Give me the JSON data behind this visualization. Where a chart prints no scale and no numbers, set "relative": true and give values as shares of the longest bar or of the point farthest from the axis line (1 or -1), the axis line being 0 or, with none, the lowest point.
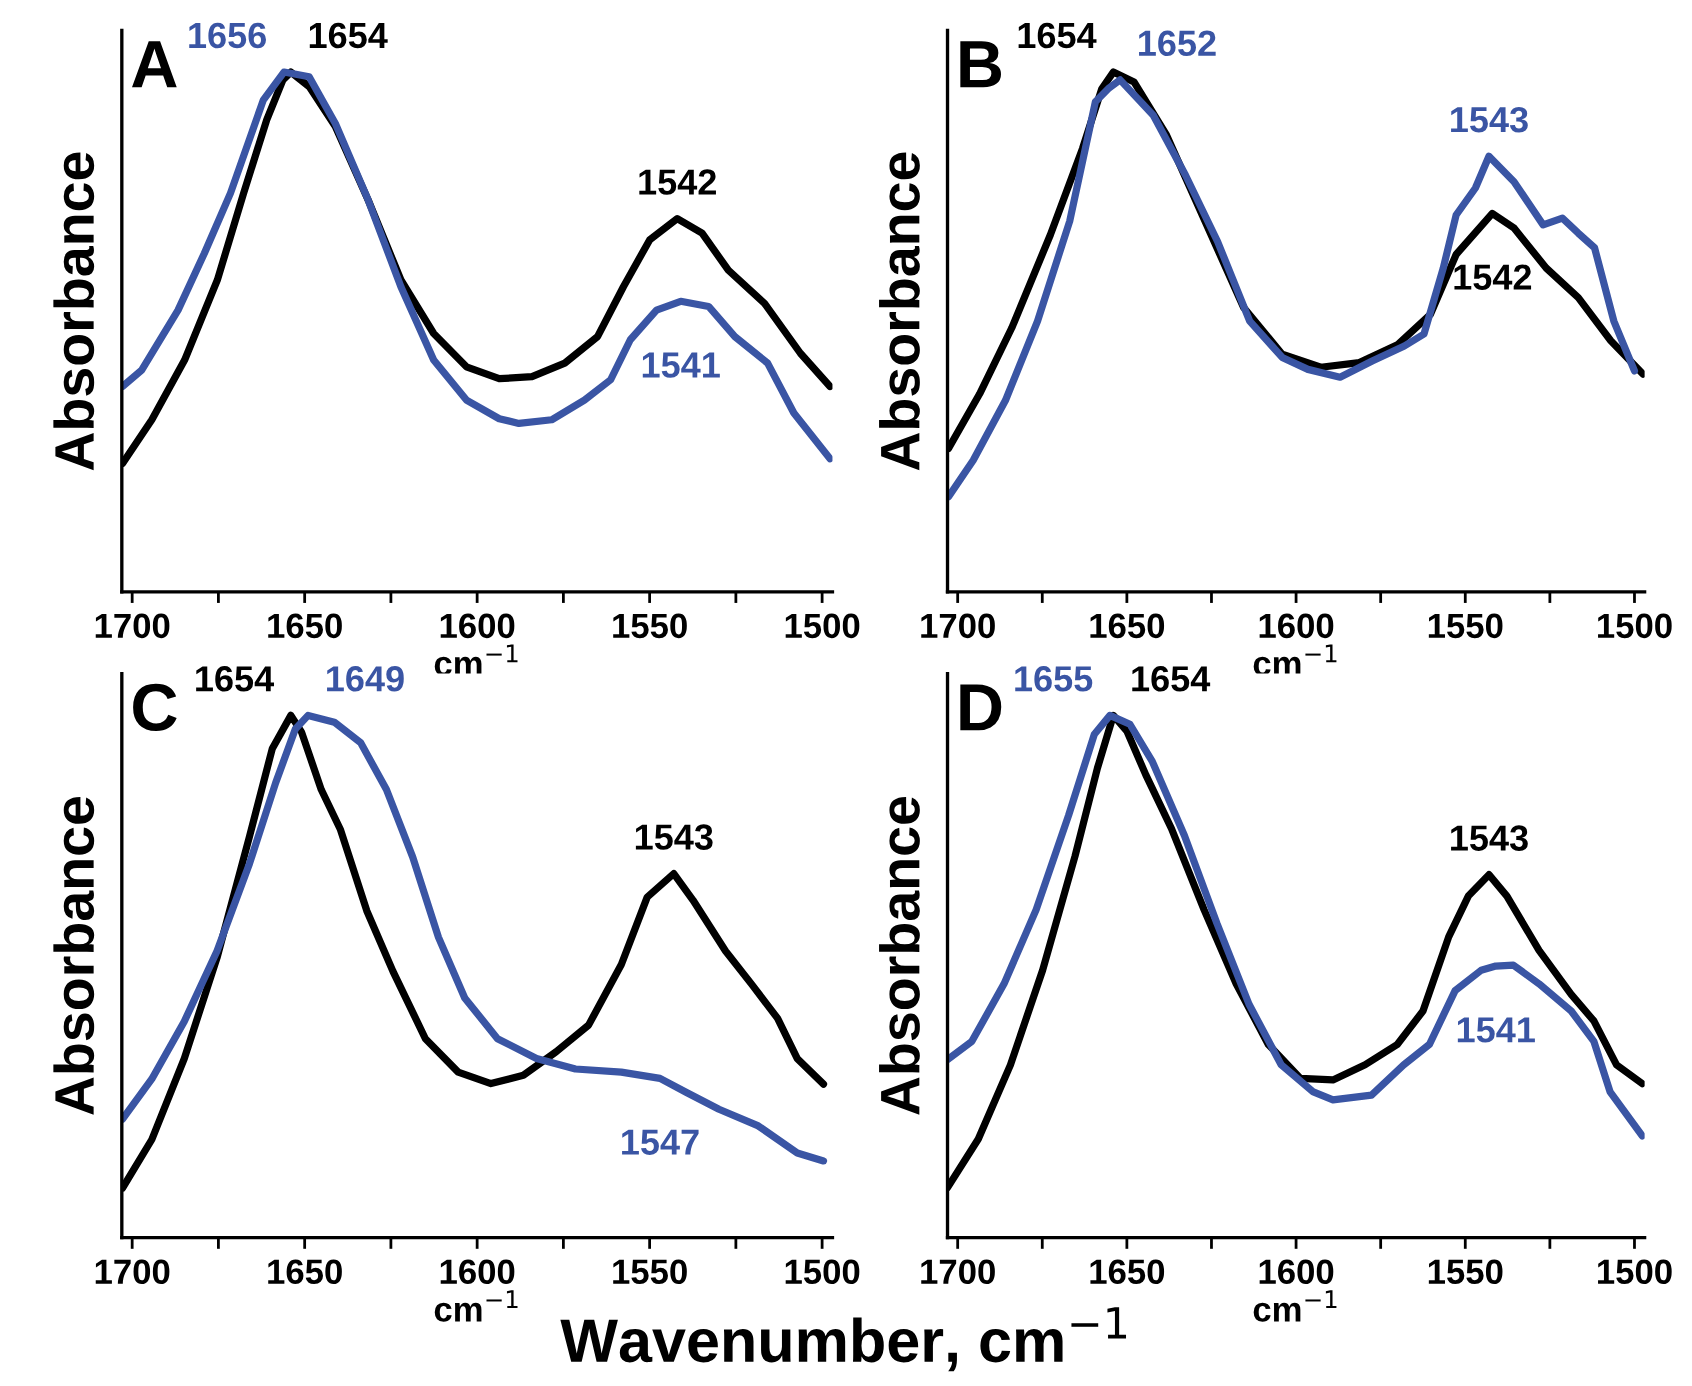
{
  "chart_data": [
    {
      "type": "line",
      "title": "A",
      "xlabel": "cm$^{−1}$",
      "ylabel": "Absorbance",
      "relative": true,
      "grid": false,
      "xlim": [
        1703,
        1497
      ],
      "xticks": [
        1700,
        {
          "value": 1675,
          "label": null
        },
        1650,
        {
          "value": 1625,
          "label": null
        },
        1600,
        {
          "value": 1575,
          "label": null
        },
        1550,
        {
          "value": 1525,
          "label": null
        },
        1500
      ],
      "series": [
        {
          "color": "#000000",
          "x": [
            1702.8,
            1694.3,
            1684.8,
            1675.3,
            1667.7,
            1661,
            1656.3,
            1654,
            1648.7,
            1641.1,
            1631.6,
            1622.1,
            1612.6,
            1603.1,
            1593.6,
            1584.1,
            1574.6,
            1565.1,
            1557.6,
            1550,
            1542,
            1534.8,
            1527.2,
            1516.7,
            1506.3,
            1497.7
          ],
          "values": [
            0.247,
            0.331,
            0.446,
            0.6,
            0.767,
            0.908,
            0.985,
            1.0,
            0.972,
            0.895,
            0.754,
            0.6,
            0.497,
            0.433,
            0.41,
            0.414,
            0.44,
            0.491,
            0.587,
            0.677,
            0.718,
            0.69,
            0.619,
            0.555,
            0.459,
            0.395
          ]
        },
        {
          "color": "#3a55a4",
          "x": [
            1702.8,
            1697.2,
            1686.7,
            1679.1,
            1671.5,
            1662,
            1656,
            1648.7,
            1641.1,
            1631.6,
            1622.1,
            1612.6,
            1603.1,
            1593.6,
            1587.9,
            1578.4,
            1568.9,
            1561.3,
            1555.6,
            1548,
            1541,
            1532.9,
            1525.3,
            1515.8,
            1508.2,
            1497.7
          ],
          "values": [
            0.395,
            0.427,
            0.542,
            0.651,
            0.767,
            0.946,
            1.0,
            0.991,
            0.901,
            0.754,
            0.587,
            0.446,
            0.369,
            0.333,
            0.324,
            0.331,
            0.369,
            0.408,
            0.485,
            0.542,
            0.559,
            0.549,
            0.491,
            0.44,
            0.344,
            0.256
          ]
        }
      ],
      "annotations": [
        {
          "text": "1656",
          "x": 1656,
          "y": 1.0
        },
        {
          "text": "1654",
          "x": 1654,
          "y": 1.0
        },
        {
          "text": "1542",
          "x": 1542,
          "y": 0.718
        },
        {
          "text": "1541",
          "x": 1541,
          "y": 0.559
        }
      ]
    },
    {
      "type": "line",
      "title": "B",
      "xlabel": "cm$^{−1}$",
      "ylabel": "Absorbance",
      "relative": true,
      "grid": false,
      "xlim": [
        1703,
        1497
      ],
      "xticks": [
        1700,
        {
          "value": 1675,
          "label": null
        },
        1650,
        {
          "value": 1625,
          "label": null
        },
        1600,
        {
          "value": 1575,
          "label": null
        },
        1550,
        {
          "value": 1525,
          "label": null
        },
        1500
      ],
      "series": [
        {
          "color": "#000000",
          "x": [
            1702.7,
            1693.5,
            1684,
            1672.6,
            1663.1,
            1657.4,
            1654,
            1647.9,
            1638.3,
            1626.9,
            1615.5,
            1604.1,
            1592.7,
            1581.3,
            1569.9,
            1560.3,
            1552.7,
            1542,
            1535.6,
            1526.1,
            1516.6,
            1507,
            1497.5
          ],
          "values": [
            0.276,
            0.381,
            0.508,
            0.687,
            0.853,
            0.968,
            1.0,
            0.981,
            0.879,
            0.713,
            0.547,
            0.457,
            0.432,
            0.441,
            0.476,
            0.534,
            0.649,
            0.728,
            0.7,
            0.623,
            0.566,
            0.483,
            0.419
          ]
        },
        {
          "color": "#3a55a4",
          "x": [
            1702.7,
            1695.4,
            1685.9,
            1676.4,
            1666.9,
            1659.3,
            1655.5,
            1652,
            1642.2,
            1632.7,
            1623.2,
            1613.7,
            1604.1,
            1596.5,
            1587,
            1577.5,
            1568,
            1562.2,
            1556.5,
            1552.7,
            1547,
            1543,
            1535.6,
            1527,
            1521.3,
            1516.6,
            1511.8,
            1506.1,
            1500
          ],
          "values": [
            0.183,
            0.253,
            0.368,
            0.521,
            0.713,
            0.943,
            0.968,
            0.985,
            0.917,
            0.802,
            0.674,
            0.521,
            0.451,
            0.428,
            0.413,
            0.444,
            0.473,
            0.496,
            0.623,
            0.725,
            0.777,
            0.838,
            0.789,
            0.706,
            0.719,
            0.69,
            0.662,
            0.521,
            0.425
          ]
        }
      ],
      "annotations": [
        {
          "text": "1654",
          "x": 1654,
          "y": 1.0
        },
        {
          "text": "1652",
          "x": 1652,
          "y": 0.985
        },
        {
          "text": "1543",
          "x": 1543,
          "y": 0.838
        },
        {
          "text": "1542",
          "x": 1542,
          "y": 0.728
        }
      ]
    },
    {
      "type": "line",
      "title": "C",
      "xlabel": "cm$^{−1}$",
      "ylabel": "Absorbance",
      "relative": true,
      "grid": false,
      "xlim": [
        1703,
        1497
      ],
      "xticks": [
        1700,
        {
          "value": 1675,
          "label": null
        },
        1650,
        {
          "value": 1625,
          "label": null
        },
        1600,
        {
          "value": 1575,
          "label": null
        },
        1550,
        {
          "value": 1525,
          "label": null
        },
        1500
      ],
      "series": [
        {
          "color": "#000000",
          "x": [
            1702.8,
            1694.3,
            1684.9,
            1675.4,
            1666,
            1659.4,
            1654,
            1650.9,
            1645.2,
            1639.6,
            1632,
            1624.4,
            1615,
            1605.5,
            1596,
            1586.6,
            1577.1,
            1567.7,
            1558.2,
            1550.7,
            1543,
            1537.4,
            1528,
            1520.4,
            1512.9,
            1507.2,
            1499.6
          ],
          "values": [
            0.095,
            0.188,
            0.343,
            0.536,
            0.768,
            0.936,
            1.0,
            0.968,
            0.858,
            0.781,
            0.626,
            0.51,
            0.381,
            0.317,
            0.295,
            0.311,
            0.356,
            0.407,
            0.523,
            0.652,
            0.697,
            0.646,
            0.549,
            0.485,
            0.42,
            0.343,
            0.294
          ]
        },
        {
          "color": "#3a55a4",
          "x": [
            1702.8,
            1694.3,
            1684.9,
            1675.4,
            1666,
            1658.4,
            1652.7,
            1649,
            1641.4,
            1633.8,
            1626.3,
            1618.7,
            1611.2,
            1603.6,
            1594.1,
            1582.8,
            1571.5,
            1558.2,
            1547,
            1539.3,
            1529.9,
            1518.5,
            1507.2,
            1499.6
          ],
          "values": [
            0.227,
            0.304,
            0.414,
            0.549,
            0.716,
            0.871,
            0.974,
            1.0,
            0.987,
            0.948,
            0.858,
            0.729,
            0.575,
            0.459,
            0.381,
            0.343,
            0.323,
            0.317,
            0.305,
            0.278,
            0.246,
            0.214,
            0.162,
            0.147
          ]
        }
      ],
      "annotations": [
        {
          "text": "1654",
          "x": 1654,
          "y": 1.0
        },
        {
          "text": "1649",
          "x": 1649,
          "y": 1.0
        },
        {
          "text": "1543",
          "x": 1543,
          "y": 0.697
        },
        {
          "text": "1547",
          "x": 1547,
          "y": 0.305
        }
      ]
    },
    {
      "type": "line",
      "title": "D",
      "xlabel": "cm$^{−1}$",
      "ylabel": "Absorbance",
      "relative": true,
      "grid": false,
      "xlim": [
        1703,
        1497
      ],
      "xticks": [
        1700,
        {
          "value": 1675,
          "label": null
        },
        1650,
        {
          "value": 1625,
          "label": null
        },
        1600,
        {
          "value": 1575,
          "label": null
        },
        1550,
        {
          "value": 1525,
          "label": null
        },
        1500
      ],
      "series": [
        {
          "color": "#000000",
          "x": [
            1703,
            1693.9,
            1684.4,
            1674.9,
            1665.3,
            1658.7,
            1654,
            1650,
            1644.4,
            1636.8,
            1627.2,
            1617.7,
            1608.2,
            1598.7,
            1589.1,
            1579.6,
            1570.1,
            1562.5,
            1554.9,
            1549.1,
            1543,
            1537.7,
            1528.2,
            1518.7,
            1512,
            1505.3,
            1497.7
          ],
          "values": [
            0.096,
            0.189,
            0.331,
            0.512,
            0.731,
            0.899,
            1.0,
            0.97,
            0.886,
            0.783,
            0.628,
            0.486,
            0.37,
            0.305,
            0.302,
            0.331,
            0.37,
            0.434,
            0.576,
            0.654,
            0.695,
            0.654,
            0.55,
            0.466,
            0.415,
            0.331,
            0.295
          ]
        },
        {
          "color": "#3a55a4",
          "x": [
            1703,
            1695.8,
            1686.3,
            1676.8,
            1667.2,
            1659.6,
            1655,
            1649.1,
            1642.5,
            1633,
            1623.4,
            1613.9,
            1604.4,
            1594.9,
            1589.1,
            1577.7,
            1568.2,
            1560.6,
            1553,
            1545.3,
            1541,
            1535.8,
            1528.2,
            1518.7,
            1512,
            1507.2,
            1497.7
          ],
          "values": [
            0.341,
            0.376,
            0.486,
            0.628,
            0.809,
            0.964,
            1.0,
            0.983,
            0.912,
            0.77,
            0.602,
            0.447,
            0.331,
            0.279,
            0.264,
            0.273,
            0.331,
            0.37,
            0.473,
            0.512,
            0.52,
            0.522,
            0.486,
            0.434,
            0.376,
            0.279,
            0.195
          ]
        }
      ],
      "annotations": [
        {
          "text": "1655",
          "x": 1655,
          "y": 1.0
        },
        {
          "text": "1654",
          "x": 1654,
          "y": 1.0
        },
        {
          "text": "1543",
          "x": 1543,
          "y": 0.695
        },
        {
          "text": "1541",
          "x": 1541,
          "y": 0.52
        },
        "Wavenumber, cm$^{−1}$"
      ]
    }
  ]
}
